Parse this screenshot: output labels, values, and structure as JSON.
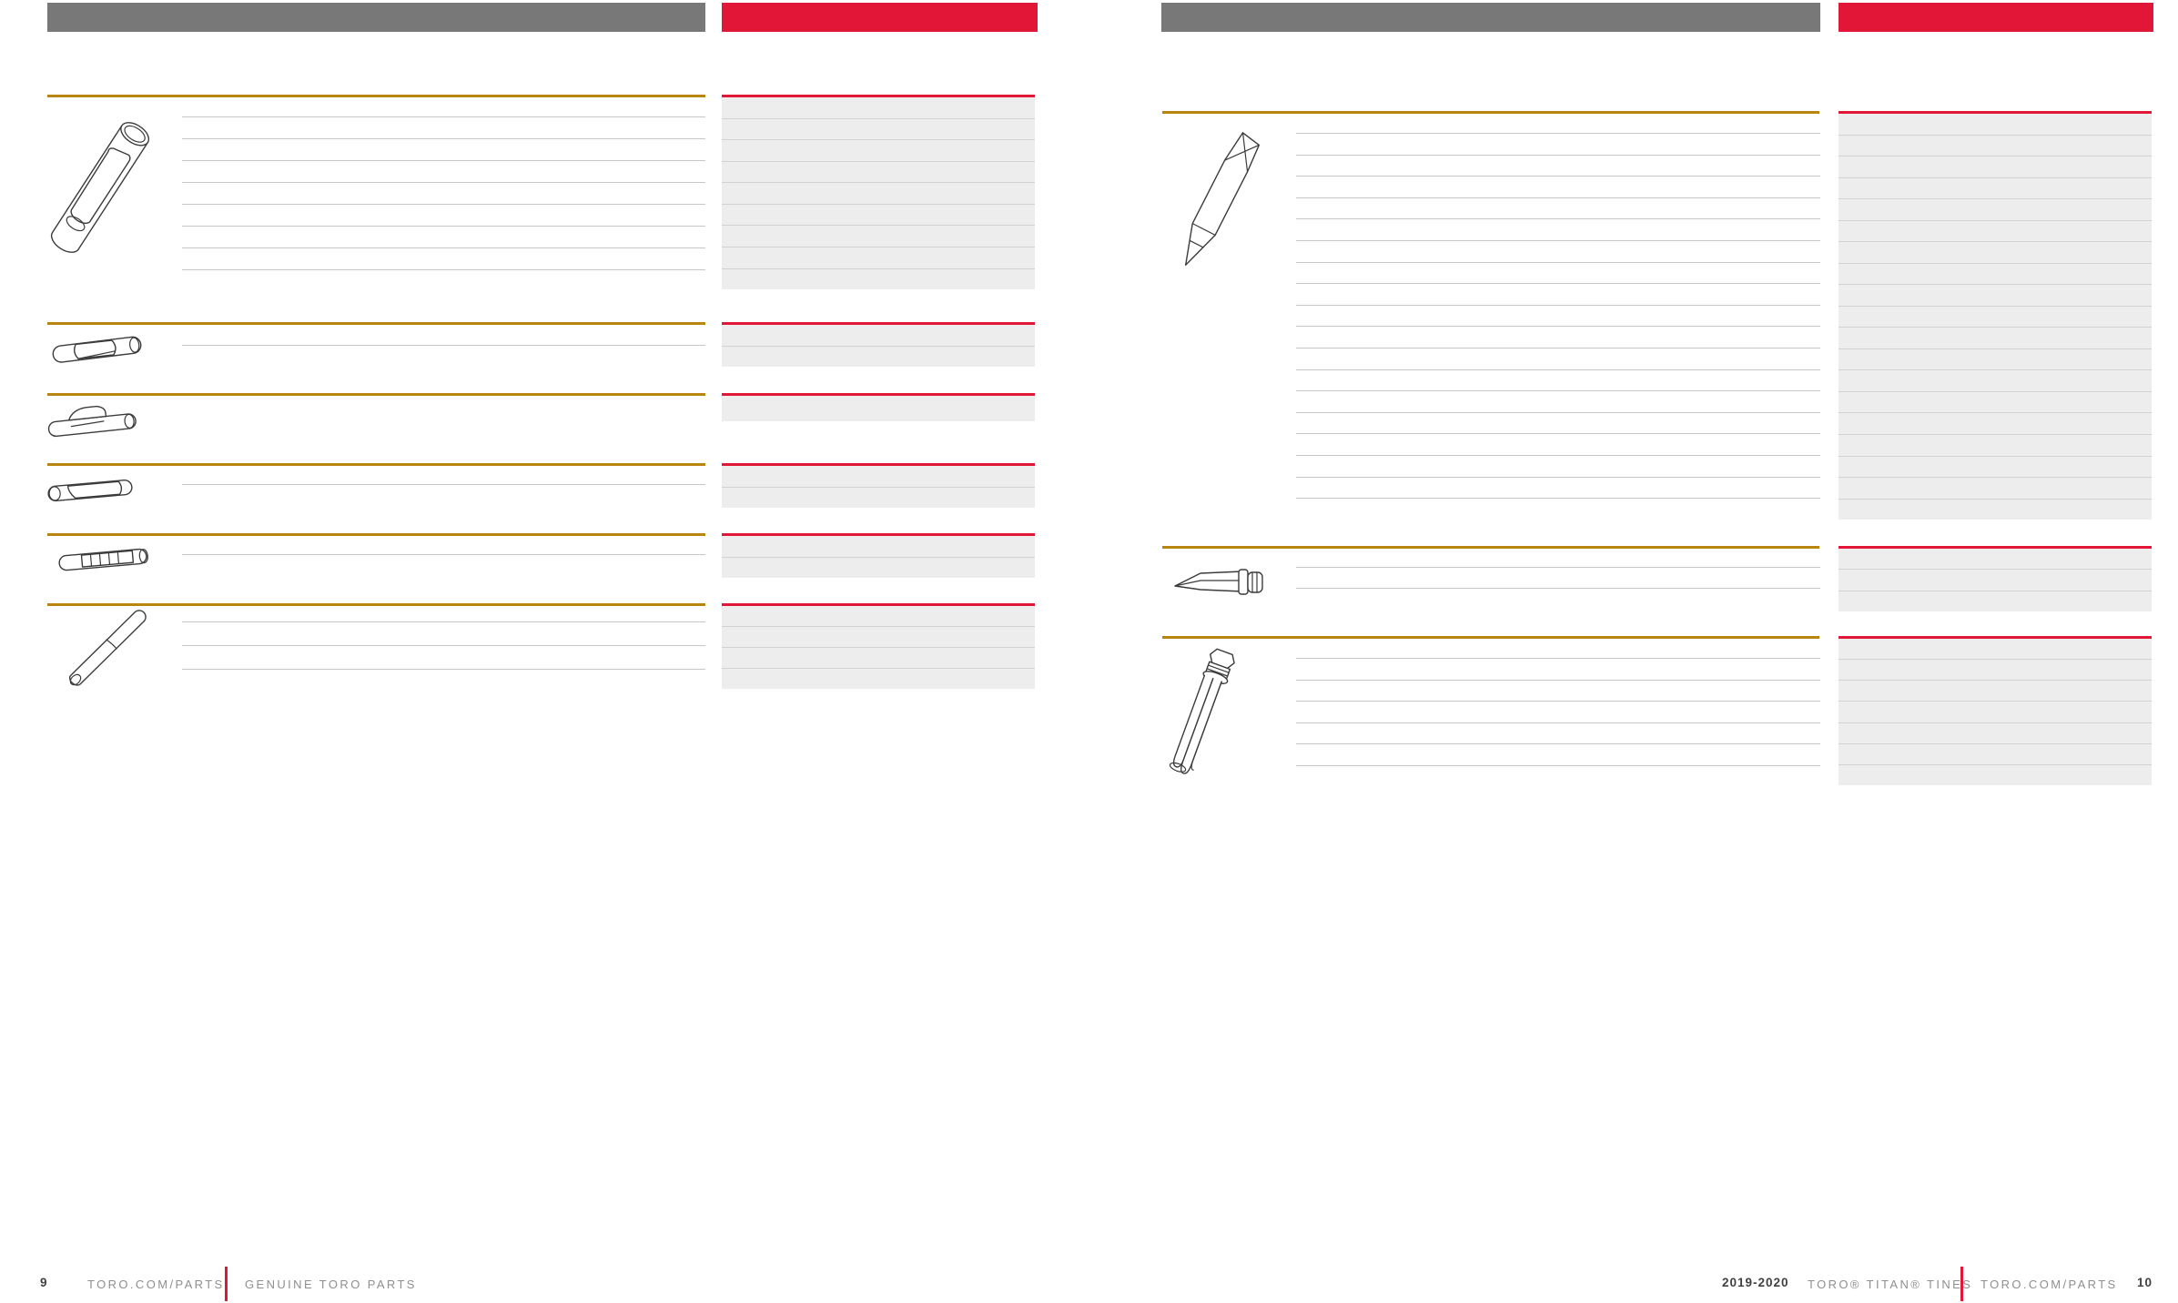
{
  "spread": {
    "left_page": {
      "page_number": "9",
      "footer": {
        "site": "TORO.COM/PARTS",
        "tagline": "GENUINE TORO PARTS"
      },
      "sections": [
        {
          "icon": "hollow-coring-tine-icon",
          "table_rows": 8,
          "panel_rows": 9
        },
        {
          "icon": "side-window-tine-icon",
          "table_rows": 1,
          "panel_rows": 2
        },
        {
          "icon": "scoop-tine-icon",
          "table_rows": 0,
          "panel_rows": 1
        },
        {
          "icon": "slot-tine-icon",
          "table_rows": 1,
          "panel_rows": 2
        },
        {
          "icon": "serrated-slot-tine-icon",
          "table_rows": 1,
          "panel_rows": 2
        },
        {
          "icon": "needle-tube-tine-icon",
          "table_rows": 3,
          "panel_rows": 4
        }
      ]
    },
    "right_page": {
      "page_number": "10",
      "footer": {
        "edition": "2019-2020",
        "catalog_title": "TORO® TITAN® TINES",
        "site": "TORO.COM/PARTS"
      },
      "sections": [
        {
          "icon": "solid-spike-tine-icon",
          "table_rows": 18,
          "panel_rows": 19
        },
        {
          "icon": "slicing-blade-tine-icon",
          "table_rows": 2,
          "panel_rows": 3
        },
        {
          "icon": "quad-needle-tine-icon",
          "table_rows": 6,
          "panel_rows": 7
        }
      ]
    }
  },
  "colors": {
    "toro_red": "#E21737",
    "header_gray": "#787878",
    "rule_gold": "#B8860E",
    "panel_bg": "#EDEDED",
    "panel_divider": "#D2D2D2",
    "table_line": "#C6C6C6",
    "footer_text": "#8F8F8F",
    "footer_bold": "#414141"
  }
}
